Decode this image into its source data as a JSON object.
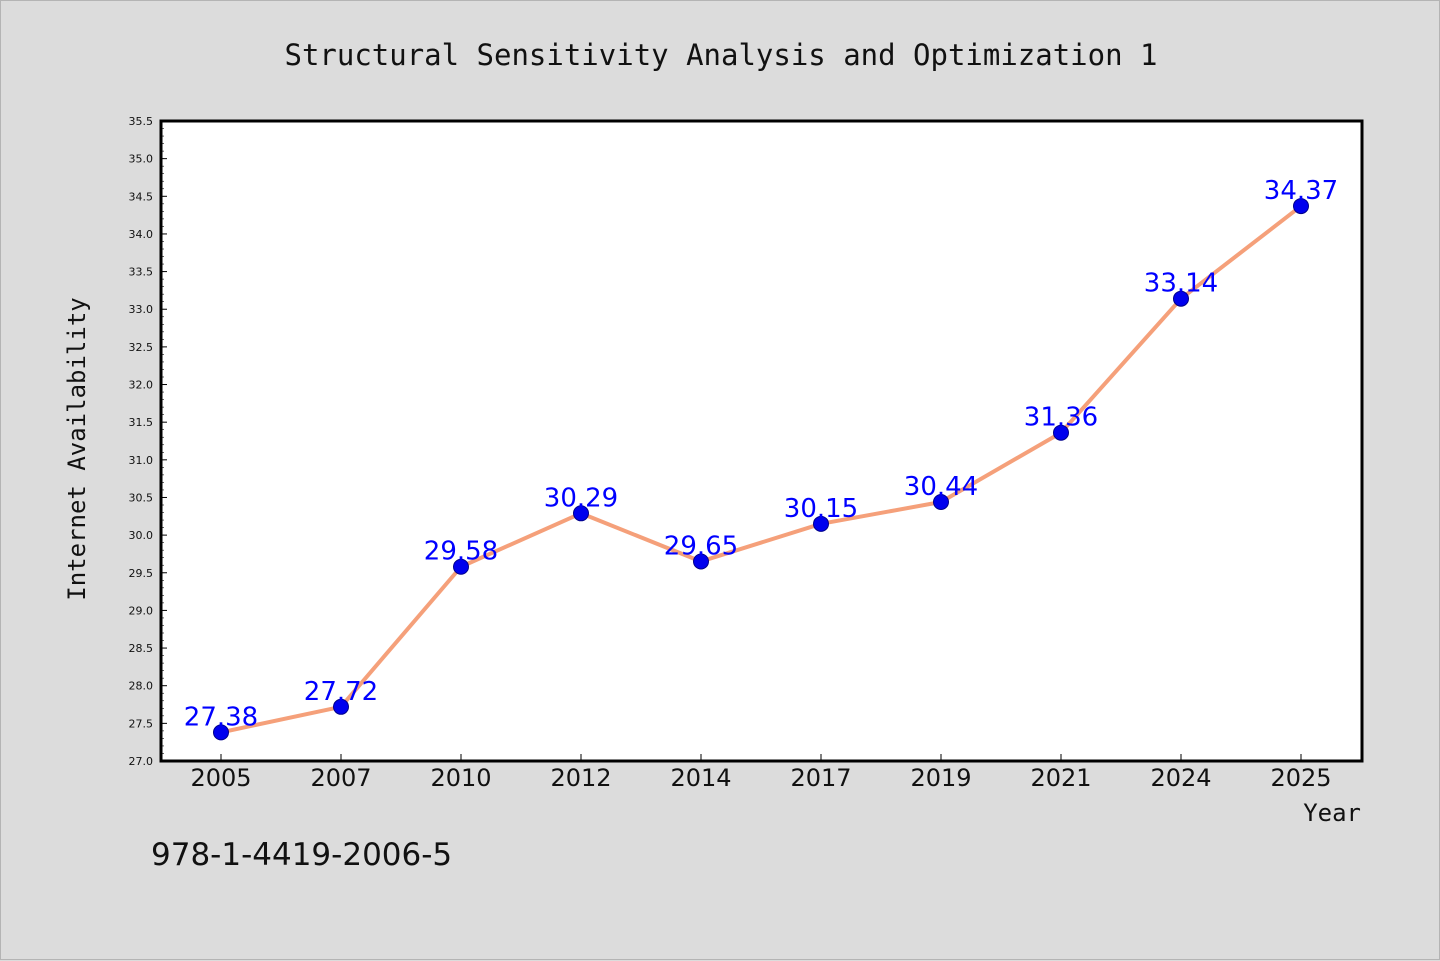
{
  "chart_data": {
    "type": "line",
    "title": "Structural Sensitivity Analysis and Optimization 1",
    "xlabel": "Year",
    "ylabel": "Internet Availability",
    "categories": [
      "2005",
      "2007",
      "2010",
      "2012",
      "2014",
      "2017",
      "2019",
      "2021",
      "2024",
      "2025"
    ],
    "series": [
      {
        "values": [
          27.38,
          27.72,
          29.58,
          30.29,
          29.65,
          30.15,
          30.44,
          31.36,
          33.14,
          34.37
        ],
        "data_labels": [
          "27.38",
          "27.72",
          "29.58",
          "30.29",
          "29.65",
          "30.15",
          "30.44",
          "31.36",
          "33.14",
          "34.37"
        ]
      }
    ],
    "ylim": [
      27.0,
      35.5
    ],
    "yticks": [
      "27.0",
      "27.5",
      "28.0",
      "28.5",
      "29.0",
      "29.5",
      "30.0",
      "30.5",
      "31.0",
      "31.5",
      "32.0",
      "32.5",
      "33.0",
      "33.5",
      "34.0",
      "34.5",
      "35.0",
      "35.5"
    ],
    "grid": false,
    "line_color": "#f5a07a",
    "marker_color": "#0000ee",
    "label_color": "#0000ff"
  },
  "footer": {
    "isbn": "978-1-4419-2006-5"
  }
}
